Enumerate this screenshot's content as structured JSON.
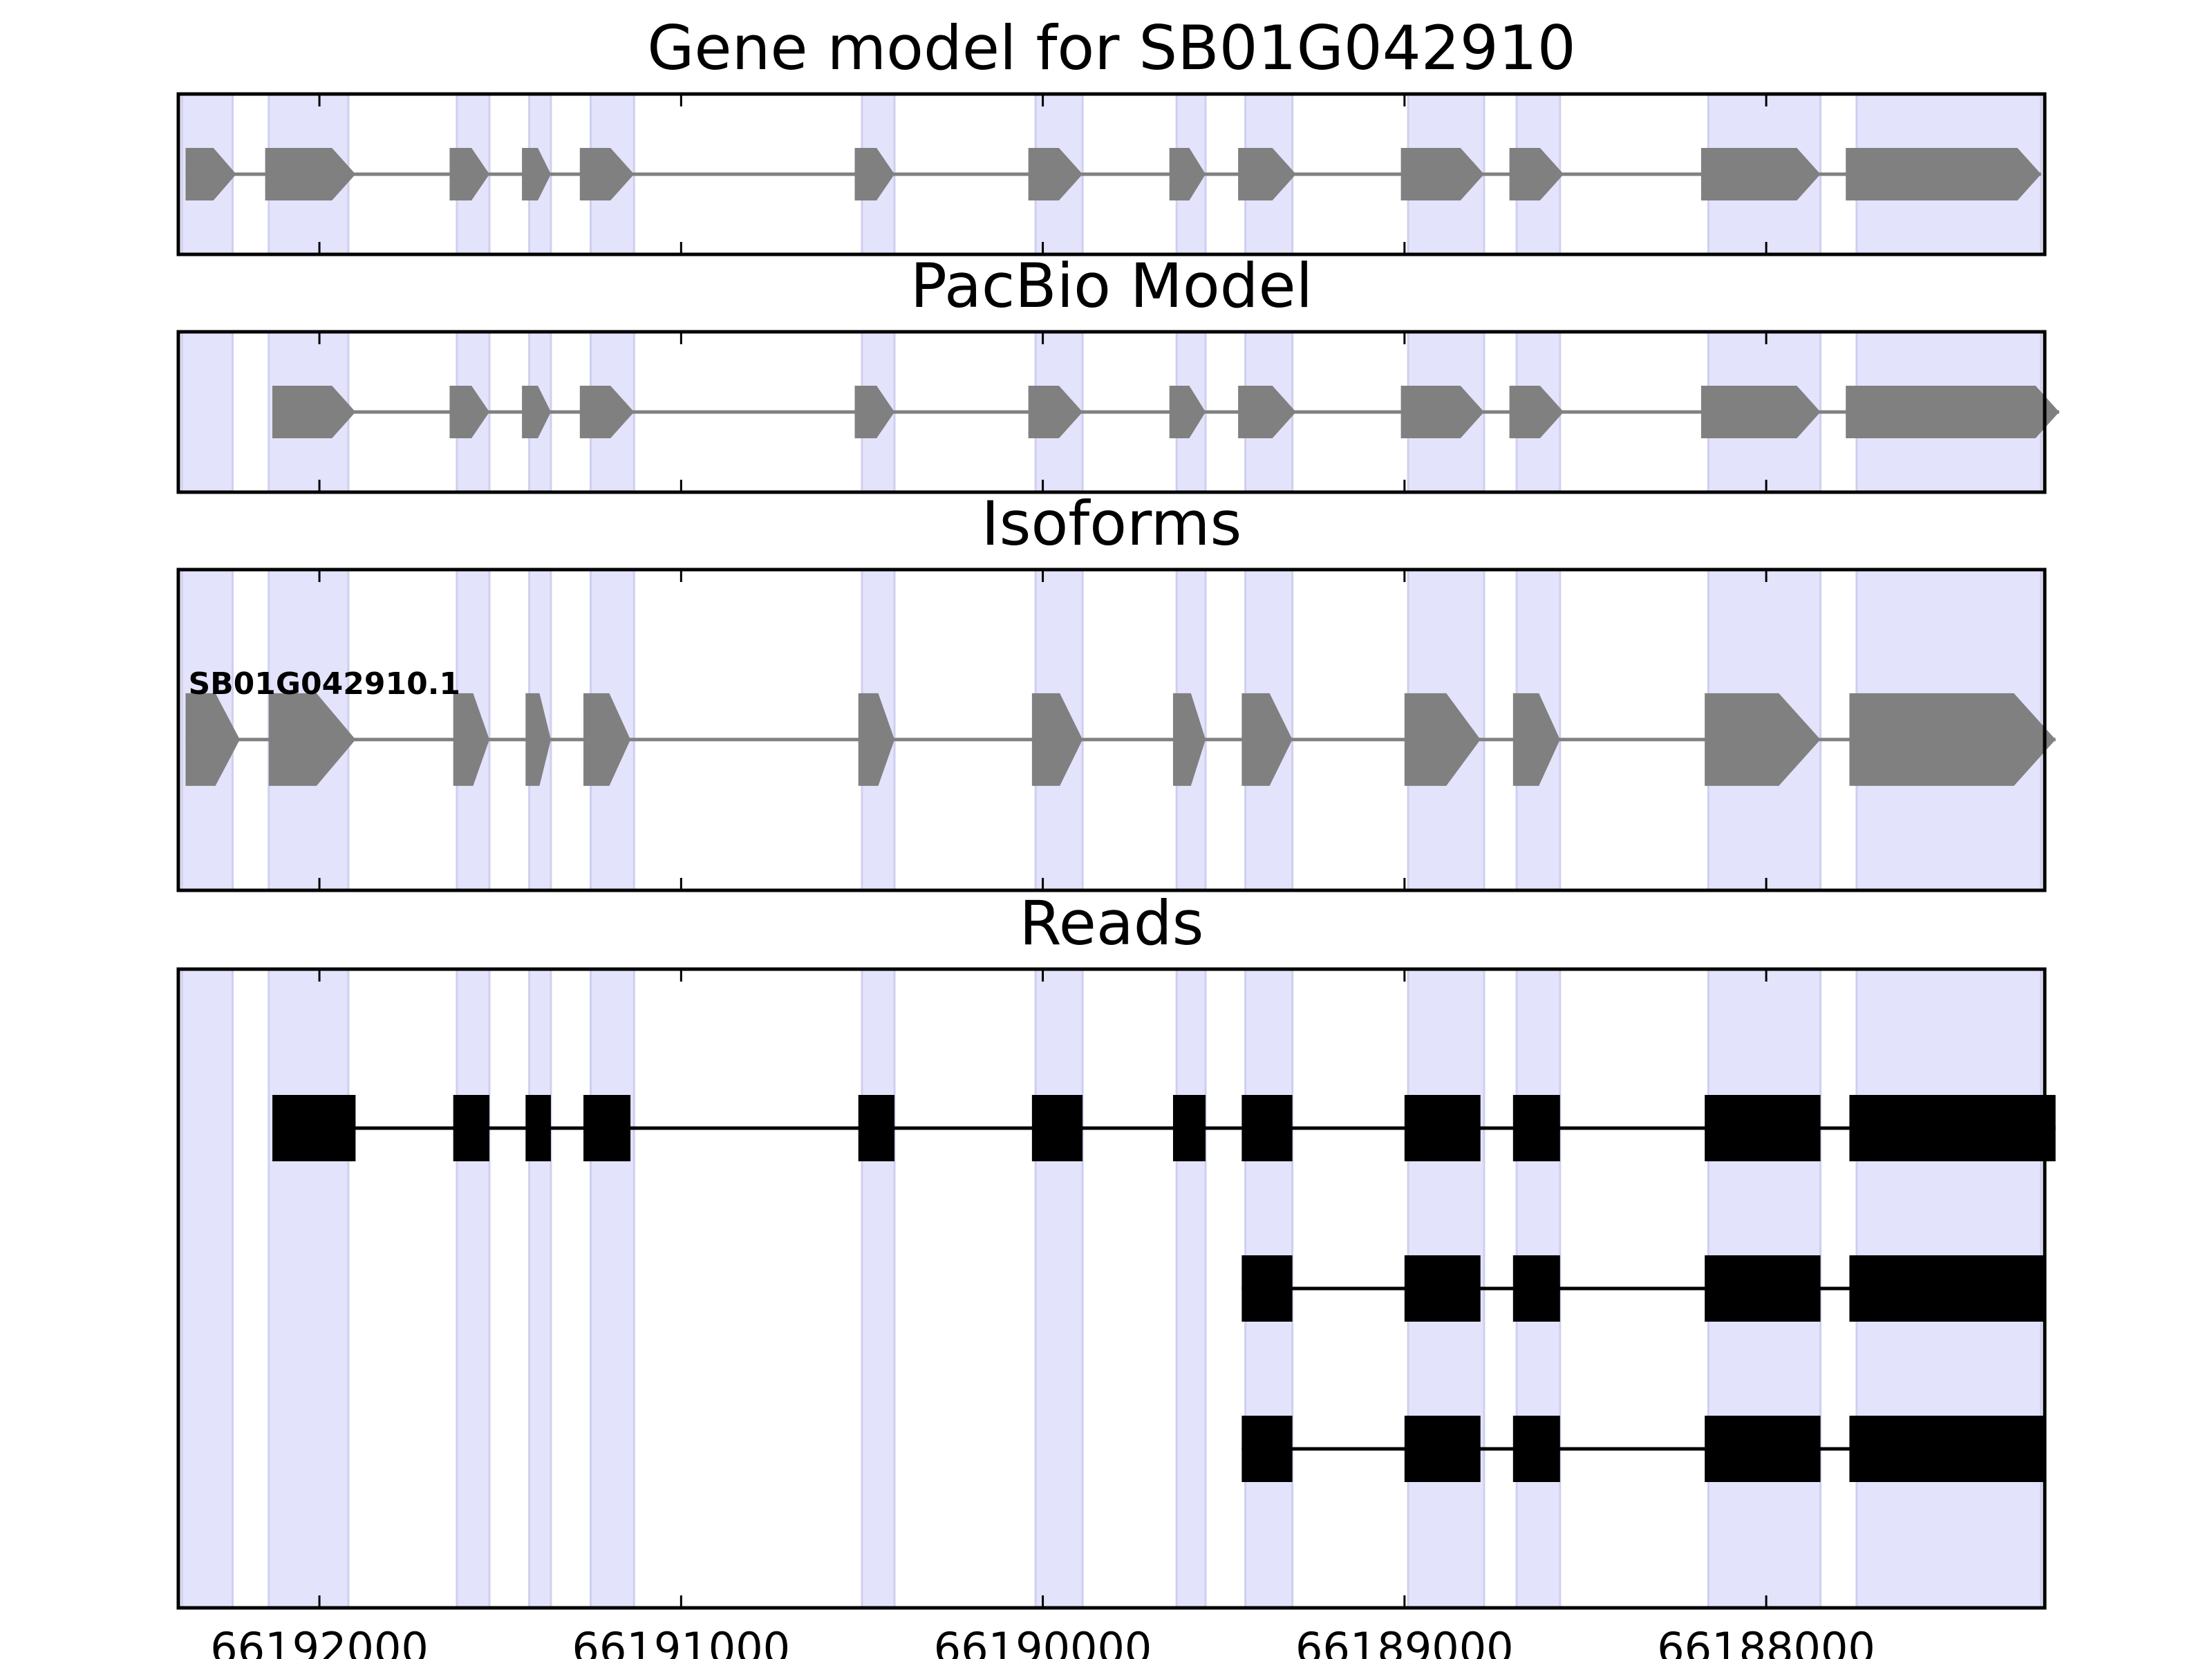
{
  "chart_data": [
    {
      "type": "gene-track",
      "title": "Gene model for SB01G042910",
      "track_style": "arrow-exons",
      "xlim": [
        66192390,
        66187230
      ],
      "x_reversed": true,
      "show_tick_labels": false,
      "colors": {
        "exon": "#808080",
        "intron": "#808080",
        "highlight": "#e3e3fb",
        "highlight_edge": "#cfcff0"
      },
      "features": [
        {
          "exons": [
            [
              66192370,
              66192230
            ],
            [
              66192150,
              66191900
            ],
            [
              66191640,
              66191530
            ],
            [
              66191440,
              66191360
            ],
            [
              66191280,
              66191130
            ],
            [
              66190520,
              66190410
            ],
            [
              66190040,
              66189890
            ],
            [
              66189650,
              66189550
            ],
            [
              66189460,
              66189300
            ],
            [
              66189010,
              66188780
            ],
            [
              66188710,
              66188560
            ],
            [
              66188180,
              66187850
            ],
            [
              66187780,
              66187240
            ]
          ]
        }
      ]
    },
    {
      "type": "gene-track",
      "title": "PacBio Model",
      "track_style": "arrow-exons",
      "xlim": [
        66192390,
        66187230
      ],
      "x_reversed": true,
      "show_tick_labels": false,
      "colors": {
        "exon": "#808080",
        "intron": "#808080",
        "highlight": "#e3e3fb",
        "highlight_edge": "#cfcff0"
      },
      "features": [
        {
          "exons": [
            [
              66192130,
              66191900
            ],
            [
              66191640,
              66191530
            ],
            [
              66191440,
              66191360
            ],
            [
              66191280,
              66191130
            ],
            [
              66190520,
              66190410
            ],
            [
              66190040,
              66189890
            ],
            [
              66189650,
              66189550
            ],
            [
              66189460,
              66189300
            ],
            [
              66189010,
              66188780
            ],
            [
              66188710,
              66188560
            ],
            [
              66188180,
              66187850
            ],
            [
              66187780,
              66187190
            ]
          ]
        }
      ]
    },
    {
      "type": "gene-track",
      "title": "Isoforms",
      "track_style": "arrow-exons",
      "xlim": [
        66192390,
        66187230
      ],
      "x_reversed": true,
      "show_tick_labels": false,
      "colors": {
        "exon": "#808080",
        "intron": "#808080",
        "highlight": "#e3e3fb",
        "highlight_edge": "#cfcff0",
        "label": "#000000"
      },
      "features": [
        {
          "label": "SB01G042910.1",
          "exons": [
            [
              66192370,
              66192220
            ],
            [
              66192140,
              66191900
            ],
            [
              66191630,
              66191530
            ],
            [
              66191430,
              66191360
            ],
            [
              66191270,
              66191140
            ],
            [
              66190510,
              66190410
            ],
            [
              66190030,
              66189890
            ],
            [
              66189640,
              66189550
            ],
            [
              66189450,
              66189310
            ],
            [
              66189000,
              66188790
            ],
            [
              66188700,
              66188570
            ],
            [
              66188170,
              66187850
            ],
            [
              66187770,
              66187200
            ]
          ]
        }
      ]
    },
    {
      "type": "gene-track",
      "title": "Reads",
      "track_style": "boxes",
      "xlim": [
        66192390,
        66187230
      ],
      "x_reversed": true,
      "xticks": [
        66192000,
        66191000,
        66190000,
        66189000,
        66188000
      ],
      "xtick_labels": [
        "66192000",
        "66191000",
        "66190000",
        "66189000",
        "66188000"
      ],
      "show_tick_labels": true,
      "colors": {
        "exon": "#000000",
        "intron": "#000000",
        "highlight": "#e3e3fb",
        "highlight_edge": "#cfcff0"
      },
      "features": [
        {
          "exons": [
            [
              66192130,
              66191900
            ],
            [
              66191630,
              66191530
            ],
            [
              66191430,
              66191360
            ],
            [
              66191270,
              66191140
            ],
            [
              66190510,
              66190410
            ],
            [
              66190030,
              66189890
            ],
            [
              66189640,
              66189550
            ],
            [
              66189450,
              66189310
            ],
            [
              66189000,
              66188790
            ],
            [
              66188700,
              66188570
            ],
            [
              66188170,
              66187850
            ],
            [
              66187770,
              66187200
            ]
          ]
        },
        {
          "exons": [
            [
              66189450,
              66189310
            ],
            [
              66189000,
              66188790
            ],
            [
              66188700,
              66188570
            ],
            [
              66188170,
              66187850
            ],
            [
              66187770,
              66187230
            ]
          ]
        },
        {
          "exons": [
            [
              66189450,
              66189310
            ],
            [
              66189000,
              66188790
            ],
            [
              66188700,
              66188570
            ],
            [
              66188170,
              66187850
            ],
            [
              66187770,
              66187230
            ]
          ]
        }
      ]
    }
  ],
  "highlight_regions": [
    [
      66192380,
      66192240
    ],
    [
      66192140,
      66191920
    ],
    [
      66191620,
      66191530
    ],
    [
      66191420,
      66191360
    ],
    [
      66191250,
      66191130
    ],
    [
      66190500,
      66190410
    ],
    [
      66190020,
      66189890
    ],
    [
      66189630,
      66189550
    ],
    [
      66189440,
      66189310
    ],
    [
      66188990,
      66188780
    ],
    [
      66188690,
      66188570
    ],
    [
      66188160,
      66187850
    ],
    [
      66187750,
      66187240
    ]
  ]
}
